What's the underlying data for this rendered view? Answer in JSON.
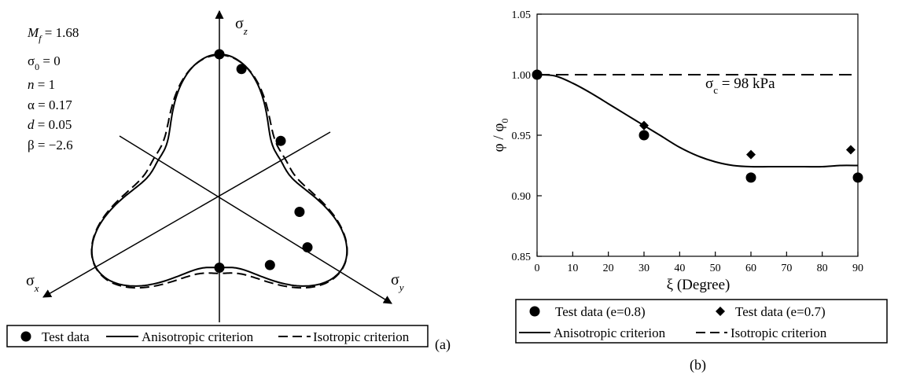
{
  "chart_data": [
    {
      "type": "scatter",
      "panel_label": "(a)",
      "title": "",
      "axes": {
        "top": "σ",
        "top_sub": "z",
        "left": "σ",
        "left_sub": "x",
        "right": "σ",
        "right_sub": "y"
      },
      "parameters": [
        {
          "sym": "M",
          "sub": "f",
          "rest": " = 1.68"
        },
        {
          "sym": "σ",
          "sub": "0",
          "rest": " = 0"
        },
        {
          "sym": "n",
          "sub": "",
          "rest": " = 1"
        },
        {
          "sym": "α",
          "sub": "",
          "rest": " = 0.17"
        },
        {
          "sym": "d",
          "sub": "",
          "rest": " = 0.05"
        },
        {
          "sym": "β",
          "sub": "",
          "rest": " = −2.6"
        }
      ],
      "legend": [
        {
          "label": "Test data",
          "style": "circle"
        },
        {
          "label": "Anisotropic criterion",
          "style": "solid"
        },
        {
          "label": "Isotropic criterion",
          "style": "dashed"
        }
      ],
      "test_points_deviatoric": [
        [
          0.0,
          1.0
        ],
        [
          0.155,
          0.896
        ],
        [
          0.431,
          0.391
        ],
        [
          0.563,
          -0.108
        ],
        [
          0.619,
          -0.357
        ],
        [
          0.355,
          -0.481
        ],
        [
          0.0,
          -0.5
        ]
      ]
    },
    {
      "type": "line",
      "panel_label": "(b)",
      "title": "",
      "xlabel": "ξ (Degree)",
      "ylabel": "φ / φ",
      "ylabel_sub": "0",
      "xlim": [
        0,
        90
      ],
      "ylim": [
        0.85,
        1.05
      ],
      "xticks": [
        "0",
        "10",
        "20",
        "30",
        "40",
        "50",
        "60",
        "70",
        "80",
        "90"
      ],
      "yticks": [
        "0.85",
        "0.90",
        "0.95",
        "1.00",
        "1.05"
      ],
      "annotation": {
        "sym": "σ",
        "sub": "c",
        "rest": " = 98 kPa"
      },
      "series": [
        {
          "name": "Test data (e=0.8)",
          "marker": "circle",
          "x": [
            0,
            30,
            60,
            90
          ],
          "y": [
            1.0,
            0.95,
            0.915,
            0.915
          ]
        },
        {
          "name": "Test data (e=0.7)",
          "marker": "diamond",
          "x": [
            0,
            30,
            60,
            88
          ],
          "y": [
            1.0,
            0.958,
            0.934,
            0.938
          ]
        },
        {
          "name": "Anisotropic criterion",
          "style": "solid",
          "x": [
            0,
            5,
            10,
            15,
            20,
            25,
            30,
            35,
            40,
            45,
            50,
            55,
            60,
            65,
            70,
            75,
            80,
            85,
            90
          ],
          "y": [
            1.0,
            0.999,
            0.993,
            0.985,
            0.976,
            0.967,
            0.958,
            0.949,
            0.94,
            0.933,
            0.928,
            0.925,
            0.924,
            0.924,
            0.924,
            0.924,
            0.924,
            0.925,
            0.925
          ]
        },
        {
          "name": "Isotropic criterion",
          "style": "dashed",
          "x": [
            0,
            90
          ],
          "y": [
            1.0,
            1.0
          ]
        }
      ]
    }
  ]
}
